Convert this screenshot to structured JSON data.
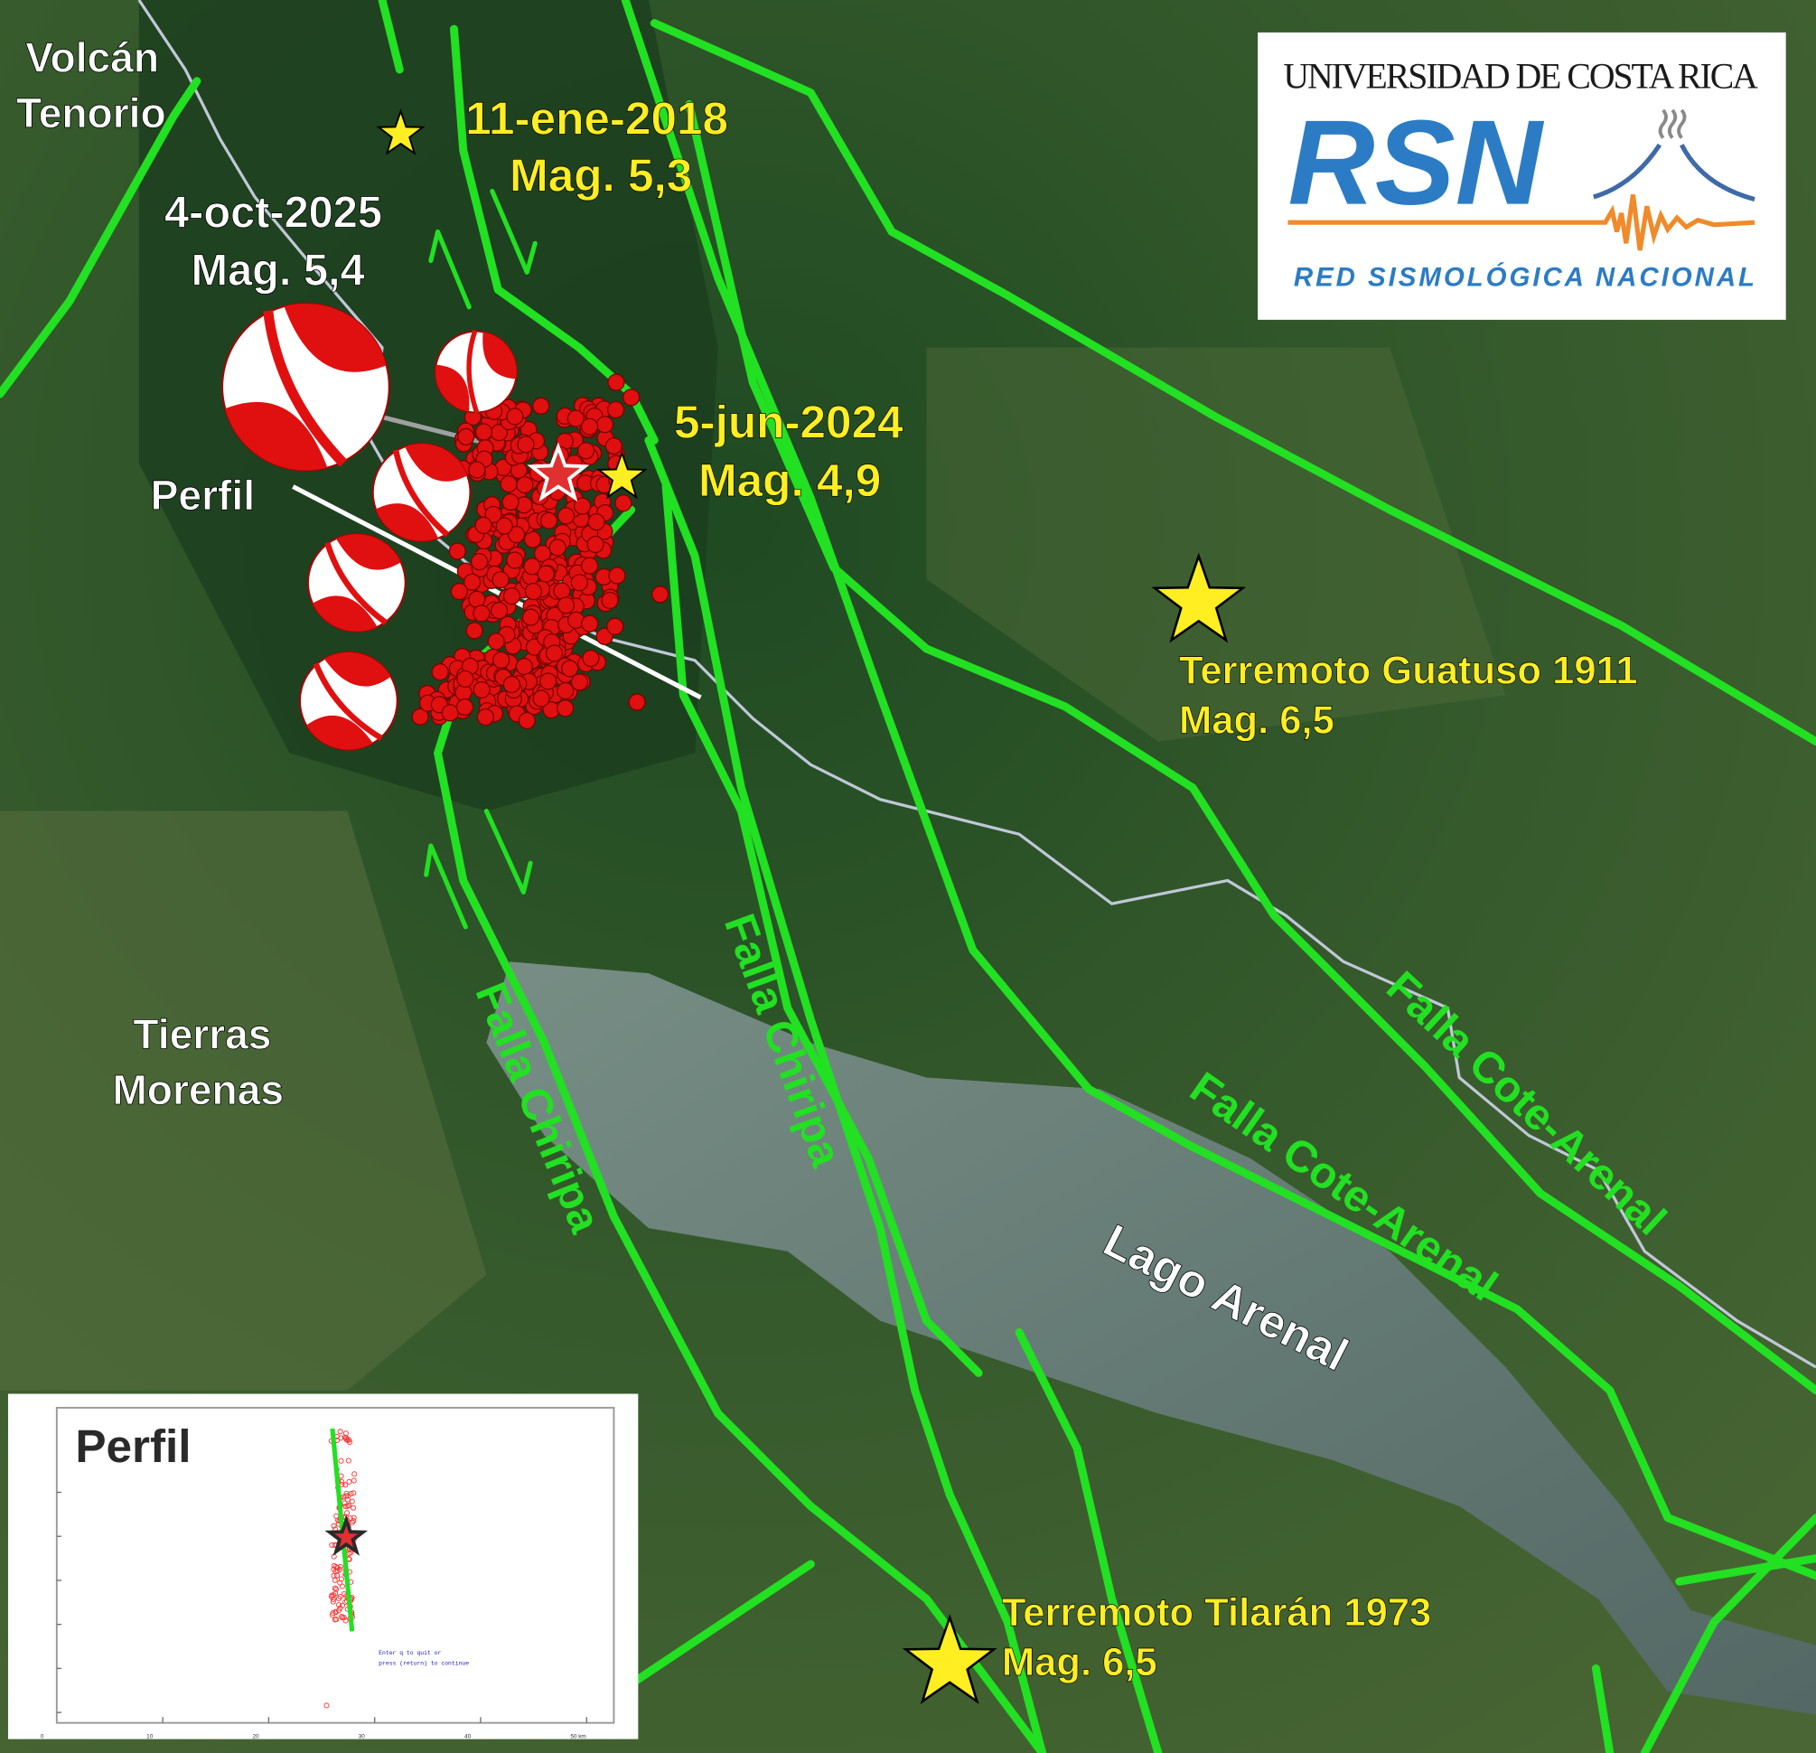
{
  "logo": {
    "university": "UNIVERSIDAD DE COSTA RICA",
    "acronym": "RSN",
    "network_name": "RED SISMOLÓGICA NACIONAL",
    "colors": {
      "blue": "#2b7cc4",
      "orange": "#f08a2a",
      "text": "#1a1a1a"
    }
  },
  "places": {
    "volcano": [
      "Volcán",
      "Tenorio"
    ],
    "town": [
      "Tierras",
      "Morenas"
    ],
    "lake": "Lago Arenal"
  },
  "events": {
    "main": {
      "date": "4-oct-2025",
      "mag": "Mag. 5,4"
    },
    "e2018": {
      "date": "11-ene-2018",
      "mag": "Mag. 5,3"
    },
    "e2024": {
      "date": "5-jun-2024",
      "mag": "Mag. 4,9"
    },
    "guatuso": {
      "date": "Terremoto Guatuso 1911",
      "mag": "Mag. 6,5"
    },
    "tilaran": {
      "date": "Terremoto Tilarán 1973",
      "mag": "Mag. 6,5"
    }
  },
  "faults": {
    "chiripa_west": "Falla Chiripa",
    "chiripa_east": "Falla Chiripa",
    "cote_arenal_1": "Falla Cote-Arenal",
    "cote_arenal_2": "Falla Cote-Arenal"
  },
  "profile_label": "Perfil",
  "inset": {
    "title": "Perfil",
    "x_ticks": [
      "0",
      "10",
      "20",
      "30",
      "40",
      "50 km"
    ],
    "prompt_line1": "Enter q to quit or",
    "prompt_line2": "press (return) to continue"
  },
  "colors": {
    "fault": "#22e022",
    "label_yellow": "#ffee22",
    "epicenter": "#e01010",
    "label_white": "#ffffff"
  }
}
